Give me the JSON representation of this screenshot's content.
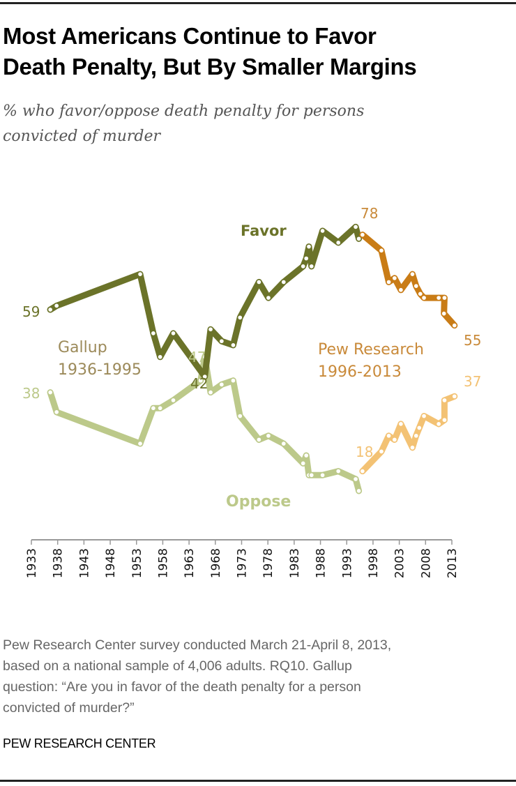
{
  "title_lines": [
    "Most Americans Continue to Favor",
    "Death Penalty, But By Smaller Margins"
  ],
  "subtitle_lines": [
    "% who favor/oppose death penalty for persons",
    "convicted of murder"
  ],
  "source_lines": [
    "Pew Research Center survey conducted March 21-April 8, 2013,",
    "based on a national sample of 4,006 adults. RQ10. Gallup",
    "question: “Are you in favor of the death penalty for a person",
    "convicted of murder?”"
  ],
  "brand": "PEW RESEARCH CENTER",
  "colors": {
    "gallup_favor": "#6b7329",
    "gallup_oppose": "#bcc98a",
    "pew_favor": "#c97c16",
    "pew_oppose": "#f3c274",
    "pew_label": "#c98a3a",
    "gallup_label": "#9c8a5a",
    "axis": "#999999"
  },
  "chart_data": {
    "type": "line",
    "title": "Most Americans Continue to Favor Death Penalty, But By Smaller Margins",
    "subtitle": "% who favor/oppose death penalty for persons convicted of murder",
    "xlabel": "",
    "ylabel": "",
    "xlim": [
      1933,
      2013
    ],
    "ylim": [
      0,
      100
    ],
    "x_ticks": [
      "1933",
      "1938",
      "1943",
      "1948",
      "1953",
      "1958",
      "1963",
      "1968",
      "1973",
      "1978",
      "1983",
      "1988",
      "1993",
      "1998",
      "2003",
      "2008",
      "2013"
    ],
    "grid": false,
    "legend": "inline labels",
    "series": [
      {
        "name": "Favor (Gallup)",
        "source": "Gallup 1936-1995",
        "color_key": "gallup_favor",
        "x": [
          1936.6,
          1937.8,
          1953.7,
          1956.2,
          1957.5,
          1960,
          1966,
          1967.1,
          1969.2,
          1971.4,
          1972.7,
          1976.3,
          1978.1,
          1981,
          1984.7,
          1985.3,
          1985.8,
          1986.3,
          1988.4,
          1991.4,
          1994.7,
          1995.3
        ],
        "values": [
          59,
          60,
          68,
          53,
          47,
          53,
          42,
          54,
          51,
          50,
          57,
          66,
          62,
          66,
          70,
          72,
          75,
          70,
          79,
          76,
          80,
          77
        ]
      },
      {
        "name": "Oppose (Gallup)",
        "source": "Gallup 1936-1995",
        "color_key": "gallup_oppose",
        "x": [
          1936.6,
          1937.8,
          1953.7,
          1956.2,
          1957.5,
          1960,
          1965.2,
          1966,
          1967.1,
          1969.2,
          1971.4,
          1972.7,
          1976.3,
          1978.1,
          1981,
          1984.7,
          1985.3,
          1985.8,
          1986.3,
          1988.4,
          1991.4,
          1994.7,
          1995.3
        ],
        "values": [
          38,
          33,
          25,
          34,
          34,
          36,
          41,
          47,
          38,
          40,
          41,
          32,
          26,
          27,
          25,
          20,
          22,
          17,
          17,
          17,
          18,
          16,
          13
        ]
      },
      {
        "name": "Favor (Pew)",
        "source": "Pew Research 1996-2013",
        "color_key": "pew_favor",
        "x": [
          1996,
          1999.6,
          2001,
          2002.1,
          2003.3,
          2005.5,
          2006.2,
          2007,
          2007.7,
          2010.5,
          2011.6,
          2011.5,
          2013.5
        ],
        "values": [
          78,
          74,
          66,
          67,
          64,
          68,
          65,
          63,
          62,
          62,
          62,
          58,
          55
        ]
      },
      {
        "name": "Oppose (Pew)",
        "source": "Pew Research 1996-2013",
        "color_key": "pew_oppose",
        "x": [
          1996,
          1999.6,
          2001,
          2002.1,
          2003.3,
          2005.5,
          2006.2,
          2006.8,
          2007.7,
          2010.5,
          2011.6,
          2011.6,
          2013.5
        ],
        "values": [
          18,
          23,
          27,
          26,
          30,
          24,
          27,
          29,
          32,
          30,
          31,
          36,
          37
        ]
      }
    ],
    "annotations": {
      "favor_label": "Favor",
      "oppose_label": "Oppose",
      "gallup_label_lines": [
        "Gallup",
        "1936-1995"
      ],
      "pew_label_lines": [
        "Pew Research",
        "1996-2013"
      ],
      "value_labels": [
        {
          "series": "Favor (Gallup)",
          "text": "59"
        },
        {
          "series": "Favor (Gallup)",
          "text": "42"
        },
        {
          "series": "Oppose (Gallup)",
          "text": "38"
        },
        {
          "series": "Oppose (Gallup)",
          "text": "47"
        },
        {
          "series": "Favor (Pew)",
          "text": "78"
        },
        {
          "series": "Favor (Pew)",
          "text": "55"
        },
        {
          "series": "Oppose (Pew)",
          "text": "18"
        },
        {
          "series": "Oppose (Pew)",
          "text": "37"
        }
      ]
    }
  }
}
